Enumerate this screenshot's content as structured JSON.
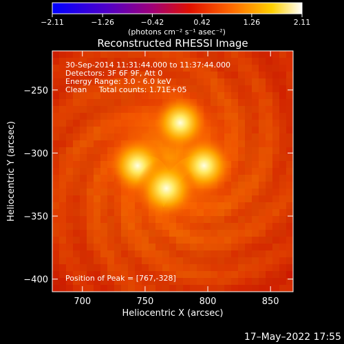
{
  "chart_data": {
    "type": "heatmap",
    "title": "Reconstructed RHESSI Image",
    "xlabel": "Heliocentric X (arcsec)",
    "ylabel": "Heliocentric Y (arcsec)",
    "xlim": [
      676,
      868
    ],
    "ylim": [
      -410,
      -219
    ],
    "xticks": [
      700,
      750,
      800,
      850
    ],
    "yticks": [
      -250,
      -300,
      -350,
      -400
    ],
    "xtick_labels": [
      "700",
      "750",
      "800",
      "850"
    ],
    "ytick_labels": [
      "−250",
      "−300",
      "−350",
      "−400"
    ],
    "colorbar": {
      "min": -2.11,
      "max": 2.11,
      "ticks": [
        -2.11,
        -1.26,
        -0.42,
        0.42,
        1.26,
        2.11
      ],
      "tick_labels": [
        "−2.11",
        "−1.26",
        "−0.42",
        "0.42",
        "1.26",
        "2.11"
      ],
      "units_label": "(photons cm⁻² s⁻¹ asec⁻²)",
      "colormap": "blue-purple-red-orange-yellow-white"
    },
    "annotations": [
      "30-Sep-2014 11:31:44.000 to 11:37:44.000",
      "Detectors: 3F 6F 9F, Att 0",
      "Energy Range: 3.0 - 6.0 keV",
      "Clean     Total counts: 1.71E+05",
      "Position of Peak = [767,-328]"
    ],
    "sources": [
      {
        "x": 778,
        "y": -276,
        "intensity": 0.75
      },
      {
        "x": 744,
        "y": -310,
        "intensity": 0.85
      },
      {
        "x": 797,
        "y": -310,
        "intensity": 0.82
      },
      {
        "x": 767,
        "y": -328,
        "intensity": 1.0
      }
    ],
    "peak": {
      "x": 767,
      "y": -328
    },
    "grid": false
  },
  "footer": {
    "date": "17–May–2022 17:55"
  }
}
